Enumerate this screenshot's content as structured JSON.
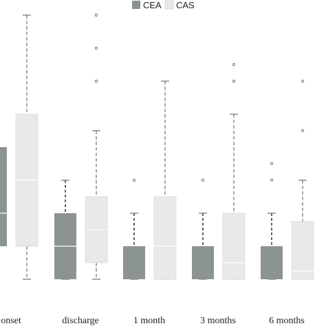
{
  "chart_data": {
    "type": "box",
    "title": "",
    "xlabel": "",
    "ylabel": "",
    "ylim": [
      0,
      8
    ],
    "grid": false,
    "legend_position": "top-center",
    "categories": [
      "onset",
      "discharge",
      "1 month",
      "3 months",
      "6 months"
    ],
    "series": [
      {
        "name": "CEA",
        "color": "#8c9393",
        "boxes": [
          {
            "min": 0,
            "q1": 1,
            "median": 2,
            "q3": 4,
            "max": 8,
            "outliers": []
          },
          {
            "min": 0,
            "q1": 0,
            "median": 1,
            "q3": 2,
            "max": 3,
            "outliers": []
          },
          {
            "min": 0,
            "q1": 0,
            "median": 0,
            "q3": 1,
            "max": 2,
            "outliers": [
              3
            ]
          },
          {
            "min": 0,
            "q1": 0,
            "median": 0,
            "q3": 1,
            "max": 2,
            "outliers": [
              3
            ]
          },
          {
            "min": 0,
            "q1": 0,
            "median": 0,
            "q3": 1,
            "max": 2,
            "outliers": [
              3,
              3.5
            ]
          }
        ]
      },
      {
        "name": "CAS",
        "color": "#e8e9e9",
        "boxes": [
          {
            "min": 0,
            "q1": 1,
            "median": 3,
            "q3": 5,
            "max": 8,
            "outliers": []
          },
          {
            "min": 0,
            "q1": 0.5,
            "median": 1.5,
            "q3": 2.5,
            "max": 4.5,
            "outliers": [
              6,
              7,
              8
            ]
          },
          {
            "min": 0,
            "q1": 0,
            "median": 1,
            "q3": 2.5,
            "max": 6,
            "outliers": []
          },
          {
            "min": 0,
            "q1": 0,
            "median": 0.5,
            "q3": 2,
            "max": 5,
            "outliers": [
              6,
              6.5
            ]
          },
          {
            "min": 0,
            "q1": 0,
            "median": 0.25,
            "q3": 1.75,
            "max": 3,
            "outliers": [
              4.5,
              6
            ]
          }
        ]
      }
    ]
  }
}
